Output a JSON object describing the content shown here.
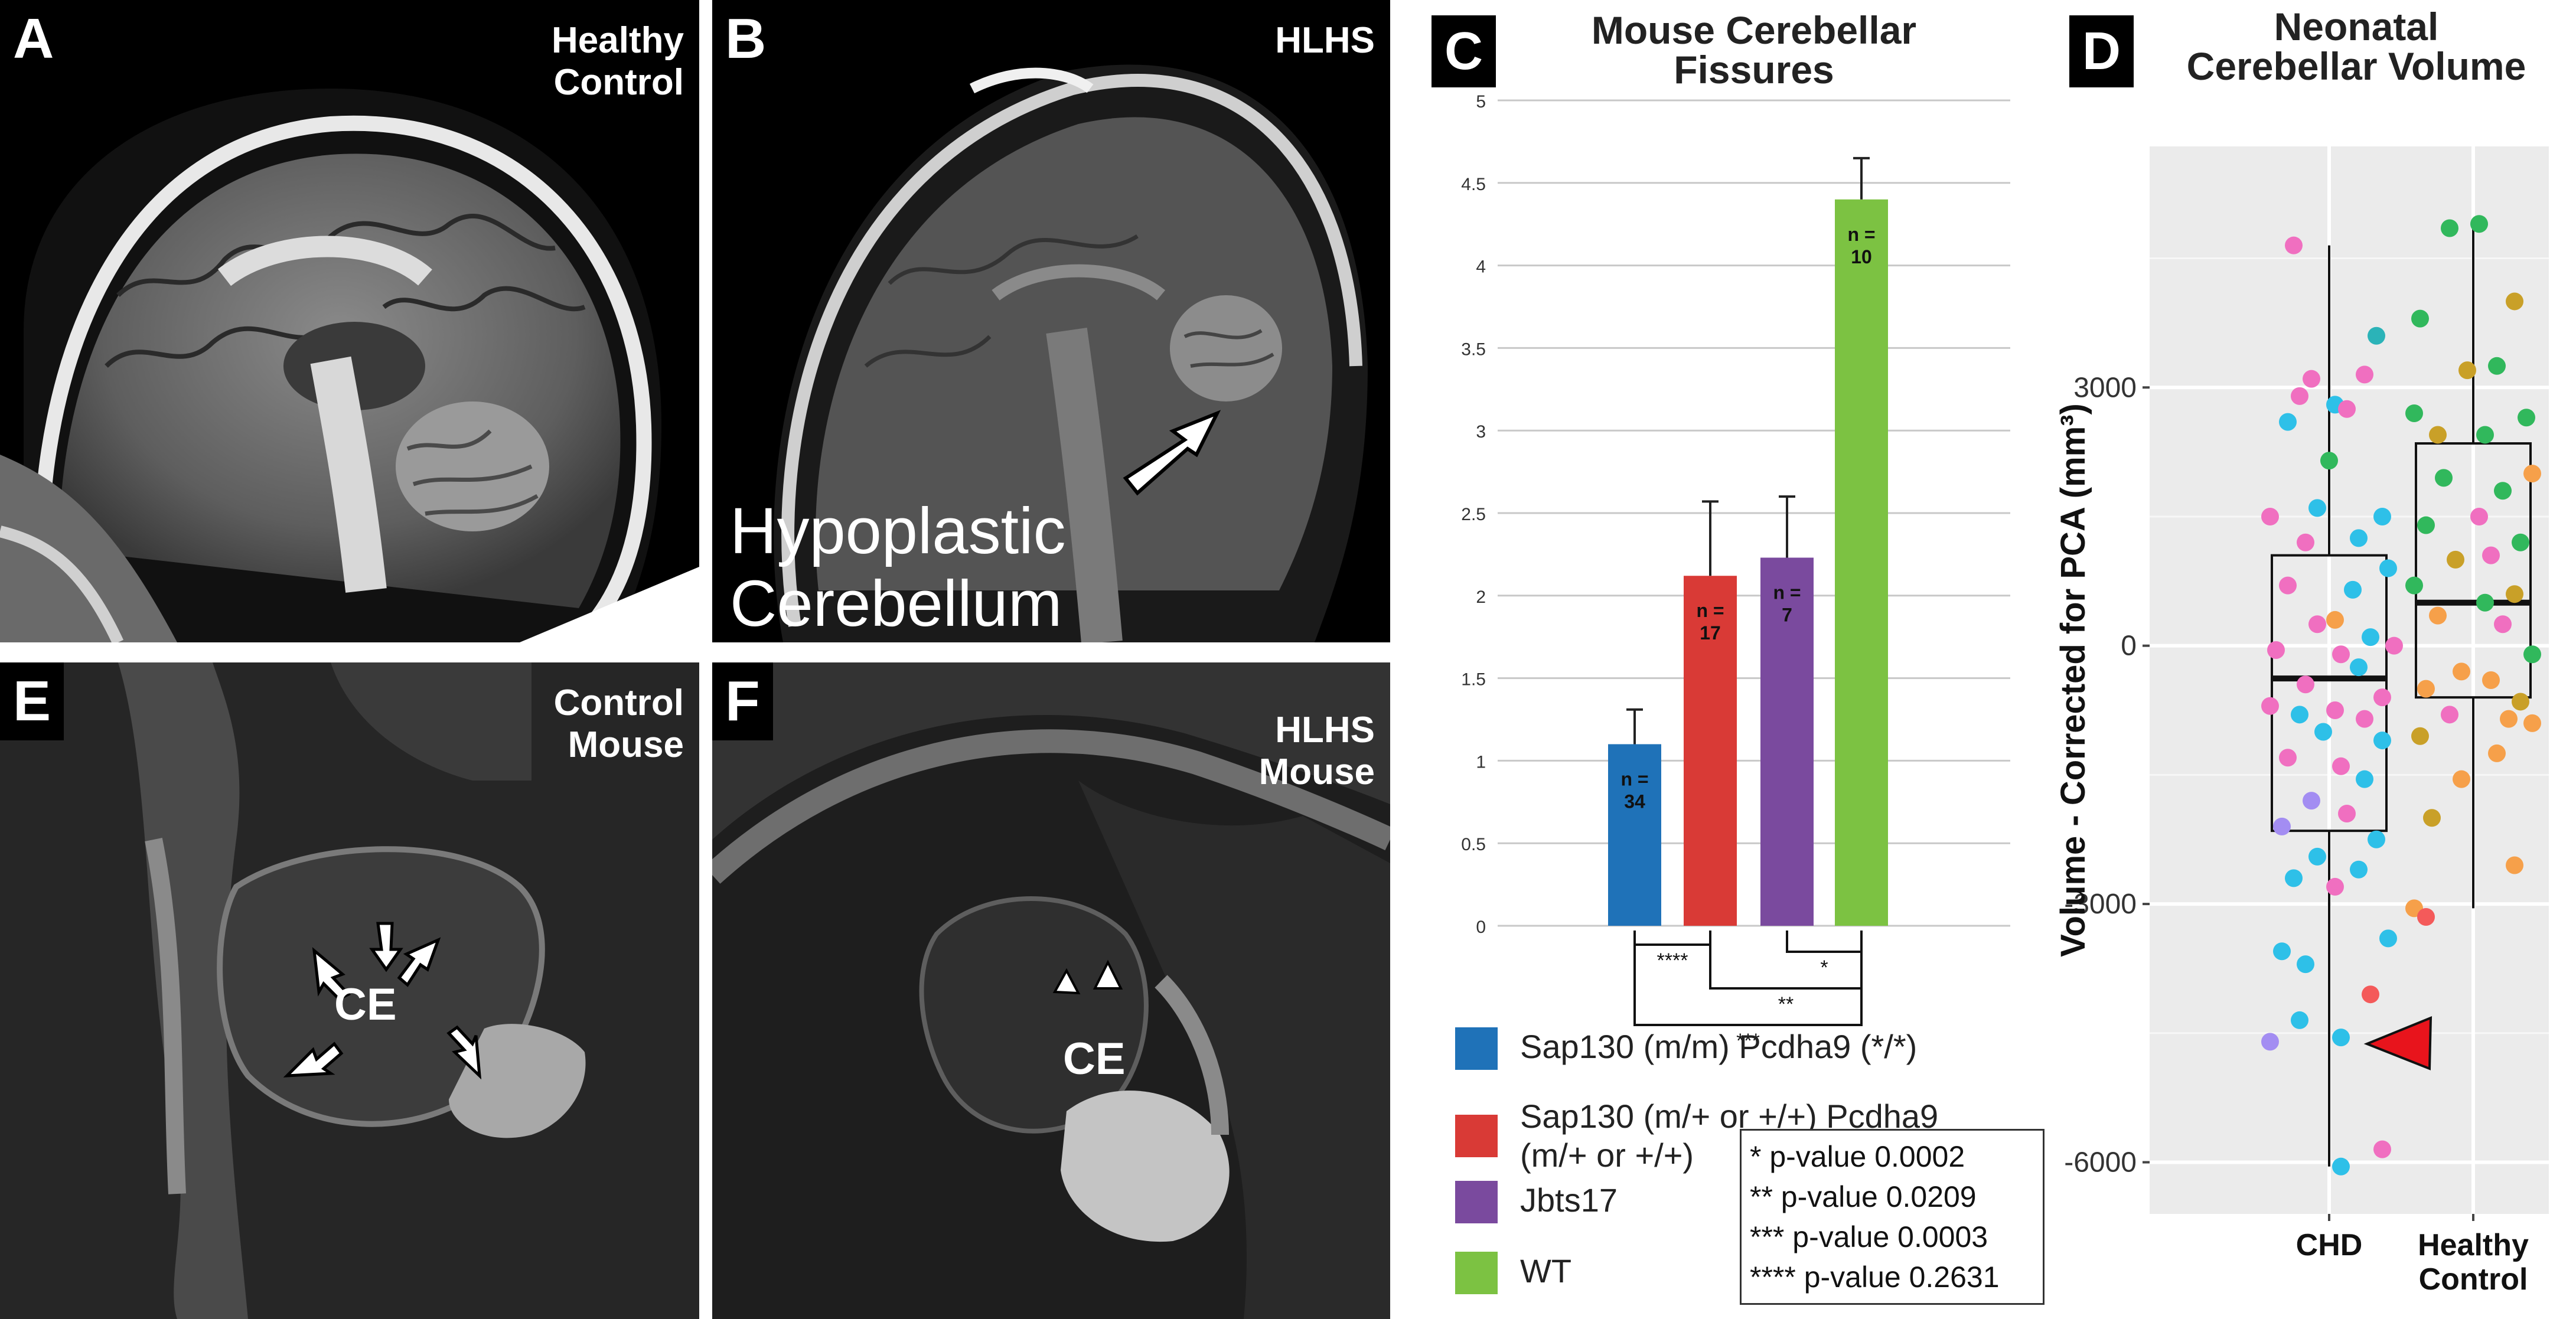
{
  "panels": {
    "a": {
      "letter": "A",
      "label": "Healthy\nControl"
    },
    "b": {
      "letter": "B",
      "label": "HLHS",
      "caption": "Hypoplastic\nCerebellum"
    },
    "c": {
      "letter": "C",
      "title": "Mouse Cerebellar\nFissures"
    },
    "d": {
      "letter": "D",
      "title": "Neonatal\nCerebellar Volume"
    },
    "e": {
      "letter": "E",
      "label": "Control\nMouse",
      "ce": "CE"
    },
    "f": {
      "letter": "F",
      "label": "HLHS\nMouse",
      "ce": "CE"
    }
  },
  "colors": {
    "sap130_mm": "#1f72b8",
    "sap130_mplus": "#d93a36",
    "jbts17": "#7a4a9e",
    "wt": "#7cc242",
    "arrowhead": "#e8141c"
  },
  "chart_data": [
    {
      "type": "bar",
      "title": "Mouse Cerebellar Fissures",
      "categories": [
        "Sap130 (m/m) Pcdha9 (*/*)",
        "Sap130 (m/+ or +/+) Pcdha9 (m/+ or +/+)",
        "Jbts17",
        "WT"
      ],
      "values": [
        1.1,
        2.12,
        2.23,
        4.4
      ],
      "errors": [
        0.21,
        0.45,
        0.37,
        0.25
      ],
      "n_labels": [
        "n =\n34",
        "n =\n17",
        "n =\n7",
        "n =\n10"
      ],
      "ylim": [
        0,
        5
      ],
      "yticks": [
        "0",
        "0.5",
        "1",
        "1.5",
        "2",
        "2.5",
        "3",
        "3.5",
        "4",
        "4.5",
        "5"
      ],
      "grid": true,
      "comparisons": [
        {
          "from": 0,
          "to": 1,
          "label": "****"
        },
        {
          "from": 2,
          "to": 3,
          "label": "*"
        },
        {
          "from": 1,
          "to": 3,
          "label": "**"
        },
        {
          "from": 0,
          "to": 3,
          "label": "***"
        }
      ],
      "legend": [
        {
          "label": "Sap130 (m/m) Pcdha9 (*/*)",
          "color": "#1f72b8"
        },
        {
          "label": "Sap130 (m/+ or +/+) Pcdha9\n(m/+ or +/+)",
          "color": "#d93a36"
        },
        {
          "label": "Jbts17",
          "color": "#7a4a9e"
        },
        {
          "label": "WT",
          "color": "#7cc242"
        }
      ],
      "pvalues": [
        "* p-value 0.0002",
        "** p-value 0.0209",
        "*** p-value 0.0003",
        "**** p-value 0.2631"
      ]
    },
    {
      "type": "scatter",
      "title": "Neonatal Cerebellar Volume",
      "ylabel": "Volume - Corrected for PCA (mm³)",
      "categories": [
        "CHD",
        "Healthy\nControl"
      ],
      "ylim": [
        -6600,
        5800
      ],
      "yticks": [
        -6000,
        -3000,
        0,
        3000
      ],
      "yticklabels": [
        "-6000",
        "-3000",
        "0",
        "3000"
      ],
      "boxes": [
        {
          "category": "CHD",
          "whisker_low": -6050,
          "q1": -2150,
          "median": -380,
          "q3": 1050,
          "whisker_high": 4650
        },
        {
          "category": "Healthy\nControl",
          "whisker_low": -3050,
          "q1": -600,
          "median": 500,
          "q3": 2350,
          "whisker_high": 4900
        }
      ],
      "points": {
        "CHD": [
          [
            -0.12,
            4650,
            "#f06fc0"
          ],
          [
            0.16,
            3600,
            "#2bb3b8"
          ],
          [
            0.12,
            3150,
            "#f06fc0"
          ],
          [
            -0.06,
            3100,
            "#f06fc0"
          ],
          [
            0.02,
            2800,
            "#2ec0e8"
          ],
          [
            -0.1,
            2900,
            "#f06fc0"
          ],
          [
            0.06,
            2750,
            "#f06fc0"
          ],
          [
            -0.14,
            2600,
            "#2ec0e8"
          ],
          [
            0.0,
            2150,
            "#31b85c"
          ],
          [
            -0.2,
            1500,
            "#f06fc0"
          ],
          [
            -0.04,
            1600,
            "#2ec0e8"
          ],
          [
            0.18,
            1500,
            "#2ec0e8"
          ],
          [
            -0.08,
            1200,
            "#f06fc0"
          ],
          [
            0.1,
            1250,
            "#2ec0e8"
          ],
          [
            0.2,
            900,
            "#2ec0e8"
          ],
          [
            -0.14,
            700,
            "#f06fc0"
          ],
          [
            0.08,
            650,
            "#2ec0e8"
          ],
          [
            0.02,
            300,
            "#f6a04a"
          ],
          [
            -0.04,
            250,
            "#f06fc0"
          ],
          [
            0.14,
            100,
            "#2ec0e8"
          ],
          [
            0.22,
            0,
            "#f06fc0"
          ],
          [
            -0.18,
            -50,
            "#f06fc0"
          ],
          [
            0.04,
            -100,
            "#f06fc0"
          ],
          [
            0.1,
            -250,
            "#2ec0e8"
          ],
          [
            -0.08,
            -450,
            "#f06fc0"
          ],
          [
            0.18,
            -600,
            "#f06fc0"
          ],
          [
            -0.2,
            -700,
            "#f06fc0"
          ],
          [
            -0.1,
            -800,
            "#2ec0e8"
          ],
          [
            0.02,
            -750,
            "#f06fc0"
          ],
          [
            0.12,
            -850,
            "#f06fc0"
          ],
          [
            -0.02,
            -1000,
            "#2ec0e8"
          ],
          [
            0.18,
            -1100,
            "#2ec0e8"
          ],
          [
            -0.14,
            -1300,
            "#f06fc0"
          ],
          [
            0.04,
            -1400,
            "#f06fc0"
          ],
          [
            0.12,
            -1550,
            "#2ec0e8"
          ],
          [
            -0.06,
            -1800,
            "#a38df2"
          ],
          [
            0.06,
            -1950,
            "#f06fc0"
          ],
          [
            -0.16,
            -2100,
            "#a38df2"
          ],
          [
            0.16,
            -2250,
            "#2ec0e8"
          ],
          [
            -0.04,
            -2450,
            "#2ec0e8"
          ],
          [
            0.1,
            -2600,
            "#2ec0e8"
          ],
          [
            -0.12,
            -2700,
            "#2ec0e8"
          ],
          [
            0.02,
            -2800,
            "#f06fc0"
          ],
          [
            0.2,
            -3400,
            "#2ec0e8"
          ],
          [
            -0.16,
            -3550,
            "#2ec0e8"
          ],
          [
            -0.08,
            -3700,
            "#2ec0e8"
          ],
          [
            0.14,
            -4050,
            "#f45a5a"
          ],
          [
            -0.1,
            -4350,
            "#2ec0e8"
          ],
          [
            -0.2,
            -4600,
            "#a38df2"
          ],
          [
            0.04,
            -4550,
            "#2ec0e8"
          ],
          [
            0.18,
            -5850,
            "#f06fc0"
          ],
          [
            0.04,
            -6050,
            "#2ec0e8"
          ]
        ],
        "Healthy\nControl": [
          [
            0.02,
            4900,
            "#31b85c"
          ],
          [
            -0.08,
            4850,
            "#31b85c"
          ],
          [
            0.14,
            4000,
            "#c9a028"
          ],
          [
            -0.18,
            3800,
            "#31b85c"
          ],
          [
            -0.02,
            3200,
            "#c9a028"
          ],
          [
            0.08,
            3250,
            "#31b85c"
          ],
          [
            -0.2,
            2700,
            "#31b85c"
          ],
          [
            0.18,
            2650,
            "#31b85c"
          ],
          [
            0.04,
            2450,
            "#31b85c"
          ],
          [
            -0.12,
            2450,
            "#c9a028"
          ],
          [
            0.2,
            2000,
            "#f6a04a"
          ],
          [
            -0.1,
            1950,
            "#31b85c"
          ],
          [
            0.1,
            1800,
            "#31b85c"
          ],
          [
            -0.16,
            1400,
            "#31b85c"
          ],
          [
            0.02,
            1500,
            "#f06fc0"
          ],
          [
            0.16,
            1200,
            "#31b85c"
          ],
          [
            -0.06,
            1000,
            "#c9a028"
          ],
          [
            0.06,
            1050,
            "#f06fc0"
          ],
          [
            -0.2,
            700,
            "#31b85c"
          ],
          [
            0.14,
            600,
            "#c9a028"
          ],
          [
            0.04,
            500,
            "#31b85c"
          ],
          [
            -0.12,
            350,
            "#f6a04a"
          ],
          [
            0.1,
            250,
            "#f06fc0"
          ],
          [
            0.2,
            -100,
            "#31b85c"
          ],
          [
            -0.04,
            -300,
            "#f6a04a"
          ],
          [
            0.06,
            -400,
            "#f6a04a"
          ],
          [
            -0.16,
            -500,
            "#f6a04a"
          ],
          [
            0.16,
            -650,
            "#c9a028"
          ],
          [
            -0.08,
            -800,
            "#f06fc0"
          ],
          [
            0.12,
            -850,
            "#f6a04a"
          ],
          [
            -0.18,
            -1050,
            "#c9a028"
          ],
          [
            0.2,
            -900,
            "#f6a04a"
          ],
          [
            -0.04,
            -1550,
            "#f6a04a"
          ],
          [
            0.08,
            -1250,
            "#f6a04a"
          ],
          [
            -0.14,
            -2000,
            "#c9a028"
          ],
          [
            0.14,
            -2550,
            "#f6a04a"
          ],
          [
            -0.2,
            -3050,
            "#f6a04a"
          ],
          [
            -0.16,
            -3150,
            "#f45a5a"
          ]
        ]
      }
    }
  ]
}
